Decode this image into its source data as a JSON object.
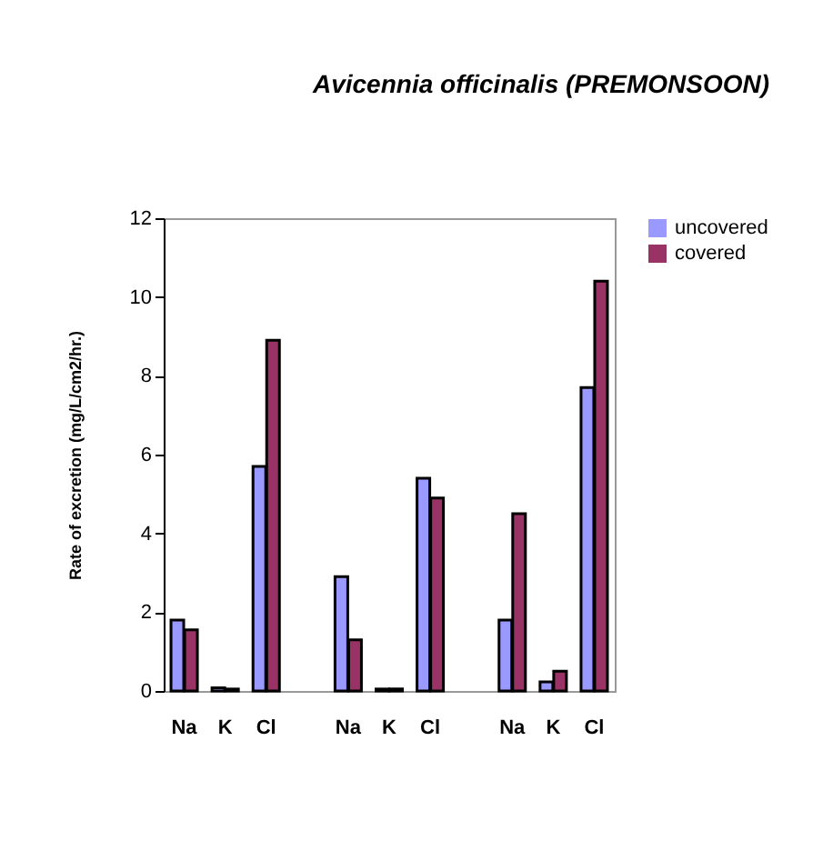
{
  "chart_data": {
    "type": "bar",
    "title": "Avicennia officinalis (PREMONSOON)",
    "ylabel": "Rate of excretion (mg/L/cm2/hr.)",
    "categories": [
      "Na",
      "K",
      "Cl",
      null,
      "Na",
      "K",
      "Cl",
      null,
      "Na",
      "K",
      "Cl"
    ],
    "series": [
      {
        "name": "uncovered",
        "color": "#9999ff",
        "values": [
          1.8,
          0.08,
          5.7,
          null,
          2.9,
          0.05,
          5.4,
          null,
          1.8,
          0.23,
          7.7
        ]
      },
      {
        "name": "covered",
        "color": "#993366",
        "values": [
          1.55,
          0.05,
          8.9,
          null,
          1.3,
          0.05,
          4.9,
          null,
          4.5,
          0.5,
          10.4
        ]
      }
    ],
    "ylim": [
      0,
      12
    ],
    "yticks": [
      0,
      2,
      4,
      6,
      8,
      10,
      12
    ],
    "grid": false,
    "legend": "right"
  }
}
